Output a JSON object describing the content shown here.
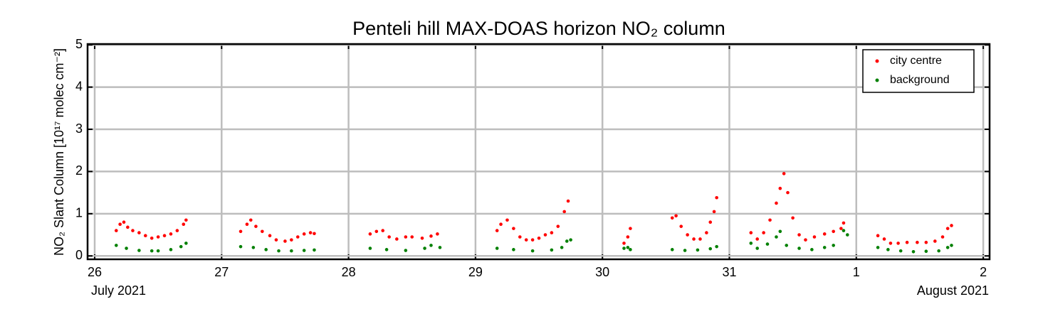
{
  "chart_data": {
    "type": "scatter",
    "title": "Penteli hill MAX-DOAS horizon NO₂ column",
    "y_label": "NO₂ Slant Column [10¹⁷ molec cm⁻²]",
    "annotations": [
      "July 2021",
      "August 2021"
    ],
    "xlim": [
      25.944,
      33.05
    ],
    "xticks": [
      26,
      27,
      28,
      29,
      30,
      31,
      {
        "value": 32,
        "label": "1"
      },
      {
        "value": 33,
        "label": "2"
      }
    ],
    "ylim": [
      -0.08,
      5.02
    ],
    "yticks": [
      0,
      1,
      2,
      3,
      4,
      5
    ],
    "grid": true,
    "legend": "upper right",
    "series": [
      {
        "name": "city centre",
        "color": "#ff0000",
        "x": [
          26.17,
          26.2,
          26.23,
          26.26,
          26.3,
          26.35,
          26.4,
          26.45,
          26.5,
          26.55,
          26.6,
          26.65,
          26.7,
          26.72,
          27.15,
          27.2,
          27.23,
          27.27,
          27.32,
          27.38,
          27.43,
          27.5,
          27.55,
          27.6,
          27.65,
          27.7,
          27.73,
          28.17,
          28.22,
          28.27,
          28.32,
          28.38,
          28.45,
          28.5,
          28.58,
          28.65,
          28.7,
          29.17,
          29.2,
          29.25,
          29.3,
          29.35,
          29.4,
          29.45,
          29.5,
          29.55,
          29.6,
          29.65,
          29.7,
          29.73,
          30.17,
          30.2,
          30.22,
          30.55,
          30.58,
          30.62,
          30.67,
          30.72,
          30.77,
          30.82,
          30.85,
          30.88,
          30.9,
          31.17,
          31.22,
          31.27,
          31.32,
          31.37,
          31.4,
          31.43,
          31.46,
          31.5,
          31.55,
          31.6,
          31.67,
          31.75,
          31.82,
          31.88,
          31.9,
          32.17,
          32.22,
          32.27,
          32.33,
          32.4,
          32.48,
          32.55,
          32.62,
          32.68,
          32.72,
          32.75
        ],
        "values": [
          0.6,
          0.75,
          0.8,
          0.68,
          0.6,
          0.55,
          0.48,
          0.42,
          0.45,
          0.48,
          0.52,
          0.6,
          0.75,
          0.85,
          0.58,
          0.75,
          0.85,
          0.7,
          0.58,
          0.48,
          0.38,
          0.35,
          0.38,
          0.45,
          0.52,
          0.55,
          0.53,
          0.52,
          0.58,
          0.6,
          0.45,
          0.4,
          0.45,
          0.45,
          0.42,
          0.47,
          0.52,
          0.6,
          0.75,
          0.85,
          0.65,
          0.45,
          0.38,
          0.38,
          0.42,
          0.5,
          0.55,
          0.7,
          1.05,
          1.3,
          0.3,
          0.45,
          0.65,
          0.9,
          0.95,
          0.7,
          0.5,
          0.4,
          0.4,
          0.55,
          0.8,
          1.05,
          1.38,
          0.55,
          0.4,
          0.55,
          0.85,
          1.25,
          1.6,
          1.95,
          1.5,
          0.9,
          0.5,
          0.38,
          0.45,
          0.52,
          0.58,
          0.65,
          0.78,
          0.48,
          0.4,
          0.3,
          0.3,
          0.32,
          0.32,
          0.32,
          0.35,
          0.45,
          0.65,
          0.72
        ]
      },
      {
        "name": "background",
        "color": "#008000",
        "x": [
          26.17,
          26.25,
          26.35,
          26.45,
          26.5,
          26.6,
          26.68,
          26.72,
          27.15,
          27.25,
          27.35,
          27.45,
          27.55,
          27.65,
          27.73,
          28.17,
          28.3,
          28.45,
          28.6,
          28.65,
          28.72,
          29.17,
          29.3,
          29.45,
          29.6,
          29.68,
          29.72,
          29.75,
          30.17,
          30.2,
          30.22,
          30.55,
          30.65,
          30.75,
          30.85,
          30.9,
          31.17,
          31.22,
          31.3,
          31.37,
          31.4,
          31.45,
          31.55,
          31.65,
          31.75,
          31.82,
          31.9,
          31.93,
          32.17,
          32.25,
          32.35,
          32.45,
          32.55,
          32.65,
          32.72,
          32.75
        ],
        "values": [
          0.25,
          0.18,
          0.13,
          0.12,
          0.12,
          0.15,
          0.22,
          0.3,
          0.22,
          0.2,
          0.15,
          0.12,
          0.12,
          0.13,
          0.14,
          0.18,
          0.15,
          0.13,
          0.18,
          0.25,
          0.2,
          0.18,
          0.15,
          0.12,
          0.14,
          0.2,
          0.35,
          0.38,
          0.18,
          0.2,
          0.15,
          0.15,
          0.13,
          0.14,
          0.17,
          0.22,
          0.3,
          0.18,
          0.28,
          0.45,
          0.58,
          0.25,
          0.18,
          0.15,
          0.2,
          0.25,
          0.6,
          0.5,
          0.2,
          0.15,
          0.12,
          0.1,
          0.11,
          0.12,
          0.2,
          0.25
        ]
      }
    ]
  }
}
